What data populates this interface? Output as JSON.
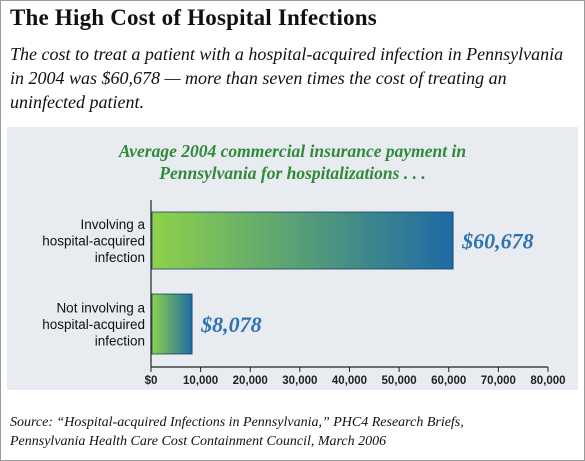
{
  "headline": "The High Cost of Hospital Infections",
  "intro": "The cost to treat a patient with a hospital-acquired infection in Pennsylvania in 2004 was $60,678 — more than seven times the cost of treating an uninfected patient.",
  "source": {
    "line1": "Source: “Hospital-acquired Infections in Pennsylvania,” PHC4 Research Briefs,",
    "line2": "Pennsylvania Health Care Cost Containment Council, March 2006"
  },
  "colors": {
    "bar_start": "#8ed24a",
    "bar_end": "#1e6aa6",
    "value_label": "#2f73b4",
    "subtitle": "#2f8a3a",
    "panel_bg": "#e8ebef"
  },
  "chart_data": {
    "type": "bar",
    "orientation": "horizontal",
    "title_lines": [
      "Average 2004 commercial insurance payment in",
      "Pennsylvania for hospitalizations . . ."
    ],
    "categories": [
      [
        "Involving a",
        "hospital-acquired",
        "infection"
      ],
      [
        "Not involving a",
        "hospital-acquired",
        "infection"
      ]
    ],
    "values": [
      60678,
      8078
    ],
    "value_labels": [
      "$60,678",
      "$8,078"
    ],
    "xlim": [
      0,
      80000
    ],
    "xticks": [
      "$0",
      "10,000",
      "20,000",
      "30,000",
      "40,000",
      "50,000",
      "60,000",
      "70,000",
      "80,000"
    ],
    "grid": false,
    "legend": "none"
  }
}
